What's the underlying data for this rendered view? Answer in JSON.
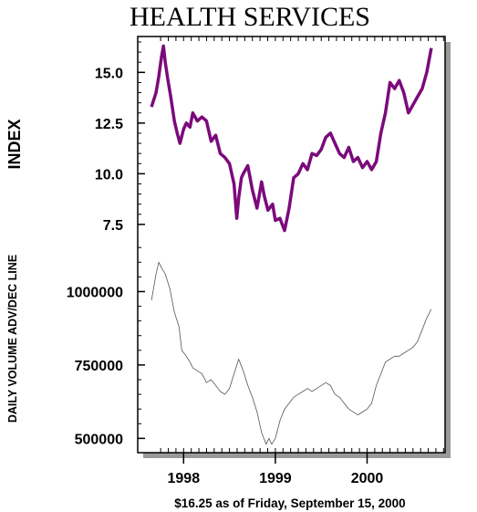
{
  "chart_data": {
    "title": "HEALTH SERVICES",
    "footer": "$16.25 as of Friday, September 15, 2000",
    "colors": {
      "index_line": "#7b0a7b",
      "volume_line": "#555555",
      "shadow": "#9a9a9a",
      "frame": "#000000"
    },
    "panels": [
      {
        "type": "line",
        "ylabel": "INDEX",
        "ylim": [
          7.0,
          16.5
        ],
        "yticks": [
          7.5,
          10.0,
          12.5,
          15.0
        ],
        "ytick_labels": [
          "7.5",
          "10.0",
          "12.5",
          "15.0"
        ],
        "series": [
          {
            "x": [
              1997.65,
              1997.7,
              1997.73,
              1997.76,
              1997.78,
              1997.8,
              1997.83,
              1997.86,
              1997.9,
              1997.93,
              1997.96,
              1998.0,
              1998.03,
              1998.07,
              1998.1,
              1998.15,
              1998.2,
              1998.25,
              1998.3,
              1998.35,
              1998.4,
              1998.45,
              1998.5,
              1998.55,
              1998.58,
              1998.6,
              1998.63,
              1998.65,
              1998.7,
              1998.75,
              1998.8,
              1998.85,
              1998.88,
              1998.92,
              1998.97,
              1999.0,
              1999.05,
              1999.1,
              1999.15,
              1999.2,
              1999.25,
              1999.3,
              1999.35,
              1999.4,
              1999.45,
              1999.5,
              1999.55,
              1999.6,
              1999.65,
              1999.7,
              1999.75,
              1999.8,
              1999.85,
              1999.9,
              1999.95,
              2000.0,
              2000.05,
              2000.1,
              2000.15,
              2000.2,
              2000.25,
              2000.3,
              2000.35,
              2000.4,
              2000.45,
              2000.5,
              2000.55,
              2000.6,
              2000.65,
              2000.7
            ],
            "values": [
              13.3,
              14.0,
              14.8,
              15.8,
              16.3,
              15.5,
              14.6,
              13.8,
              12.6,
              12.0,
              11.5,
              12.2,
              12.5,
              12.3,
              13.0,
              12.6,
              12.8,
              12.6,
              11.6,
              11.9,
              11.0,
              10.8,
              10.5,
              9.5,
              7.8,
              8.8,
              9.8,
              10.0,
              10.4,
              9.2,
              8.3,
              9.6,
              8.9,
              8.2,
              8.5,
              7.7,
              7.8,
              7.2,
              8.3,
              9.8,
              10.0,
              10.5,
              10.2,
              11.0,
              10.9,
              11.2,
              11.8,
              12.0,
              11.5,
              11.0,
              10.8,
              11.3,
              10.6,
              10.8,
              10.3,
              10.6,
              10.2,
              10.6,
              12.0,
              13.0,
              14.5,
              14.2,
              14.6,
              14.0,
              13.0,
              13.4,
              13.8,
              14.2,
              15.0,
              16.2
            ]
          }
        ]
      },
      {
        "type": "line",
        "ylabel": "DAILY VOLUME ADV/DEC LINE",
        "ylim": [
          470000,
          1160000
        ],
        "yticks": [
          500000,
          750000,
          1000000
        ],
        "ytick_labels": [
          "500000",
          "750000",
          "1000000"
        ],
        "series": [
          {
            "x": [
              1997.65,
              1997.7,
              1997.73,
              1997.76,
              1997.8,
              1997.85,
              1997.9,
              1997.95,
              1997.98,
              1998.03,
              1998.07,
              1998.1,
              1998.15,
              1998.2,
              1998.25,
              1998.3,
              1998.35,
              1998.4,
              1998.45,
              1998.5,
              1998.55,
              1998.6,
              1998.65,
              1998.7,
              1998.75,
              1998.8,
              1998.85,
              1998.9,
              1998.93,
              1998.96,
              1999.0,
              1999.05,
              1999.1,
              1999.15,
              1999.2,
              1999.25,
              1999.3,
              1999.35,
              1999.4,
              1999.45,
              1999.5,
              1999.55,
              1999.6,
              1999.65,
              1999.7,
              1999.75,
              1999.8,
              1999.85,
              1999.9,
              1999.95,
              2000.0,
              2000.05,
              2000.1,
              2000.15,
              2000.2,
              2000.25,
              2000.3,
              2000.35,
              2000.4,
              2000.45,
              2000.5,
              2000.55,
              2000.6,
              2000.65,
              2000.7
            ],
            "values": [
              970000,
              1060000,
              1100000,
              1080000,
              1060000,
              1010000,
              930000,
              880000,
              800000,
              780000,
              760000,
              740000,
              730000,
              720000,
              690000,
              700000,
              680000,
              660000,
              650000,
              670000,
              720000,
              770000,
              730000,
              680000,
              640000,
              590000,
              520000,
              480000,
              500000,
              480000,
              500000,
              560000,
              600000,
              620000,
              640000,
              650000,
              660000,
              670000,
              660000,
              670000,
              680000,
              690000,
              680000,
              650000,
              640000,
              620000,
              600000,
              590000,
              580000,
              590000,
              600000,
              620000,
              680000,
              720000,
              760000,
              770000,
              780000,
              780000,
              790000,
              800000,
              810000,
              830000,
              870000,
              910000,
              940000
            ]
          }
        ]
      }
    ],
    "xaxis": {
      "xlim": [
        1997.5,
        2000.85
      ],
      "ticks": [
        1998,
        1999,
        2000
      ],
      "tick_labels": [
        "1998",
        "1999",
        "2000"
      ]
    },
    "grid": false,
    "legend": "none"
  }
}
